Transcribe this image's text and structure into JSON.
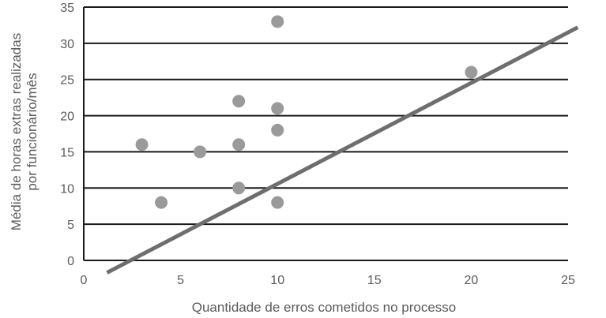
{
  "chart_data": {
    "type": "scatter",
    "title": "",
    "xlabel": "Quantidade de erros cometidos no processo",
    "ylabel_lines": [
      "Média de horas extras realizadas",
      "por funcionário/mês"
    ],
    "xlim": [
      0,
      25
    ],
    "ylim": [
      0,
      35
    ],
    "x_ticks": [
      0,
      5,
      10,
      15,
      20,
      25
    ],
    "y_ticks": [
      0,
      5,
      10,
      15,
      20,
      25,
      30,
      35
    ],
    "grid": "horizontal",
    "points": [
      {
        "x": 3,
        "y": 16
      },
      {
        "x": 4,
        "y": 8
      },
      {
        "x": 6,
        "y": 15
      },
      {
        "x": 8,
        "y": 22
      },
      {
        "x": 8,
        "y": 16
      },
      {
        "x": 8,
        "y": 10
      },
      {
        "x": 10,
        "y": 33
      },
      {
        "x": 10,
        "y": 21
      },
      {
        "x": 10,
        "y": 18
      },
      {
        "x": 10,
        "y": 8
      },
      {
        "x": 20,
        "y": 26
      }
    ],
    "trendline": {
      "x": [
        1.2,
        25.5
      ],
      "y": [
        -1.7,
        32.2
      ]
    },
    "colors": {
      "points": "#9a9a9a",
      "trendline": "#6e6e6e",
      "grid": "#1a1a1a",
      "text": "#5a5a5a"
    }
  }
}
